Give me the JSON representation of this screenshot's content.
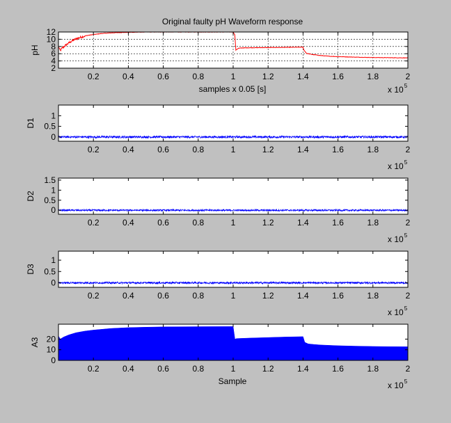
{
  "figure": {
    "background": "#c0c0c0",
    "axes_background": "#ffffff"
  },
  "chart_data": [
    {
      "type": "line",
      "title": "Original faulty pH Waveform response",
      "xlabel": "samples x 0.05 [s]",
      "ylabel": "pH",
      "xlim": [
        0,
        2
      ],
      "ylim": [
        2,
        12
      ],
      "x_ticks": [
        0.2,
        0.4,
        0.6,
        0.8,
        1,
        1.2,
        1.4,
        1.6,
        1.8,
        2
      ],
      "y_ticks": [
        2,
        4,
        6,
        8,
        10,
        12
      ],
      "x_multiplier": "x 10",
      "x_exponent": "5",
      "grid": true,
      "color": "#ff0000",
      "x": [
        0,
        0.01,
        0.02,
        0.04,
        0.06,
        0.08,
        0.1,
        0.13,
        0.16,
        0.2,
        0.25,
        0.3,
        0.35,
        0.4,
        0.45,
        0.5,
        1.0,
        1.01,
        1.015,
        1.03,
        1.05,
        1.1,
        1.2,
        1.3,
        1.4,
        1.405,
        1.42,
        1.45,
        1.5,
        1.55,
        1.6,
        1.7,
        1.8,
        1.9,
        2.0
      ],
      "y": [
        8,
        6.8,
        7.5,
        8.3,
        9,
        9.6,
        10.1,
        10.6,
        11,
        11.3,
        11.6,
        11.75,
        11.85,
        11.9,
        11.95,
        12,
        12,
        11.2,
        7.0,
        7.5,
        7.6,
        7.65,
        7.7,
        7.75,
        7.8,
        7.0,
        6.1,
        5.8,
        5.5,
        5.3,
        5.2,
        5.05,
        4.95,
        4.9,
        4.85
      ]
    },
    {
      "type": "line",
      "ylabel": "D1",
      "xlim": [
        0,
        2
      ],
      "ylim": [
        -0.2,
        1.5
      ],
      "x_ticks": [
        0.2,
        0.4,
        0.6,
        0.8,
        1,
        1.2,
        1.4,
        1.6,
        1.8,
        2
      ],
      "y_ticks": [
        0,
        0.5,
        1
      ],
      "x_multiplier": "x 10",
      "x_exponent": "5",
      "color": "#0000ff",
      "baseline": 0,
      "noise_amplitude": 0.05
    },
    {
      "type": "line",
      "ylabel": "D2",
      "xlim": [
        0,
        2
      ],
      "ylim": [
        -0.2,
        1.6
      ],
      "x_ticks": [
        0.2,
        0.4,
        0.6,
        0.8,
        1,
        1.2,
        1.4,
        1.6,
        1.8,
        2
      ],
      "y_ticks": [
        0,
        0.5,
        1,
        1.5
      ],
      "x_multiplier": "x 10",
      "x_exponent": "5",
      "color": "#0000ff",
      "baseline": 0,
      "noise_amplitude": 0.04
    },
    {
      "type": "line",
      "ylabel": "D3",
      "xlim": [
        0,
        2
      ],
      "ylim": [
        -0.2,
        1.4
      ],
      "x_ticks": [
        0.2,
        0.4,
        0.6,
        0.8,
        1,
        1.2,
        1.4,
        1.6,
        1.8,
        2
      ],
      "y_ticks": [
        0,
        0.5,
        1
      ],
      "x_multiplier": "x 10",
      "x_exponent": "5",
      "color": "#0000ff",
      "baseline": 0,
      "noise_amplitude": 0.04
    },
    {
      "type": "area",
      "xlabel": "Sample",
      "ylabel": "A3",
      "xlim": [
        0,
        2
      ],
      "ylim": [
        0,
        34
      ],
      "x_ticks": [
        0.2,
        0.4,
        0.6,
        0.8,
        1,
        1.2,
        1.4,
        1.6,
        1.8,
        2
      ],
      "y_ticks": [
        0,
        10,
        20
      ],
      "x_multiplier": "x 10",
      "x_exponent": "5",
      "color": "#0000ff",
      "x": [
        0,
        0.01,
        0.03,
        0.06,
        0.1,
        0.15,
        0.2,
        0.3,
        0.4,
        0.5,
        0.6,
        0.8,
        1.0,
        1.01,
        1.02,
        1.1,
        1.2,
        1.3,
        1.4,
        1.41,
        1.43,
        1.46,
        1.5,
        1.6,
        1.7,
        1.8,
        1.9,
        2.0
      ],
      "y": [
        23,
        20,
        22,
        24,
        26,
        27.5,
        28.5,
        30,
        30.8,
        31.2,
        31.5,
        31.7,
        31.8,
        20,
        20.5,
        21,
        21.5,
        22,
        22.3,
        17,
        15.5,
        15,
        14.5,
        13.8,
        13.4,
        13.1,
        12.9,
        12.8
      ]
    }
  ]
}
